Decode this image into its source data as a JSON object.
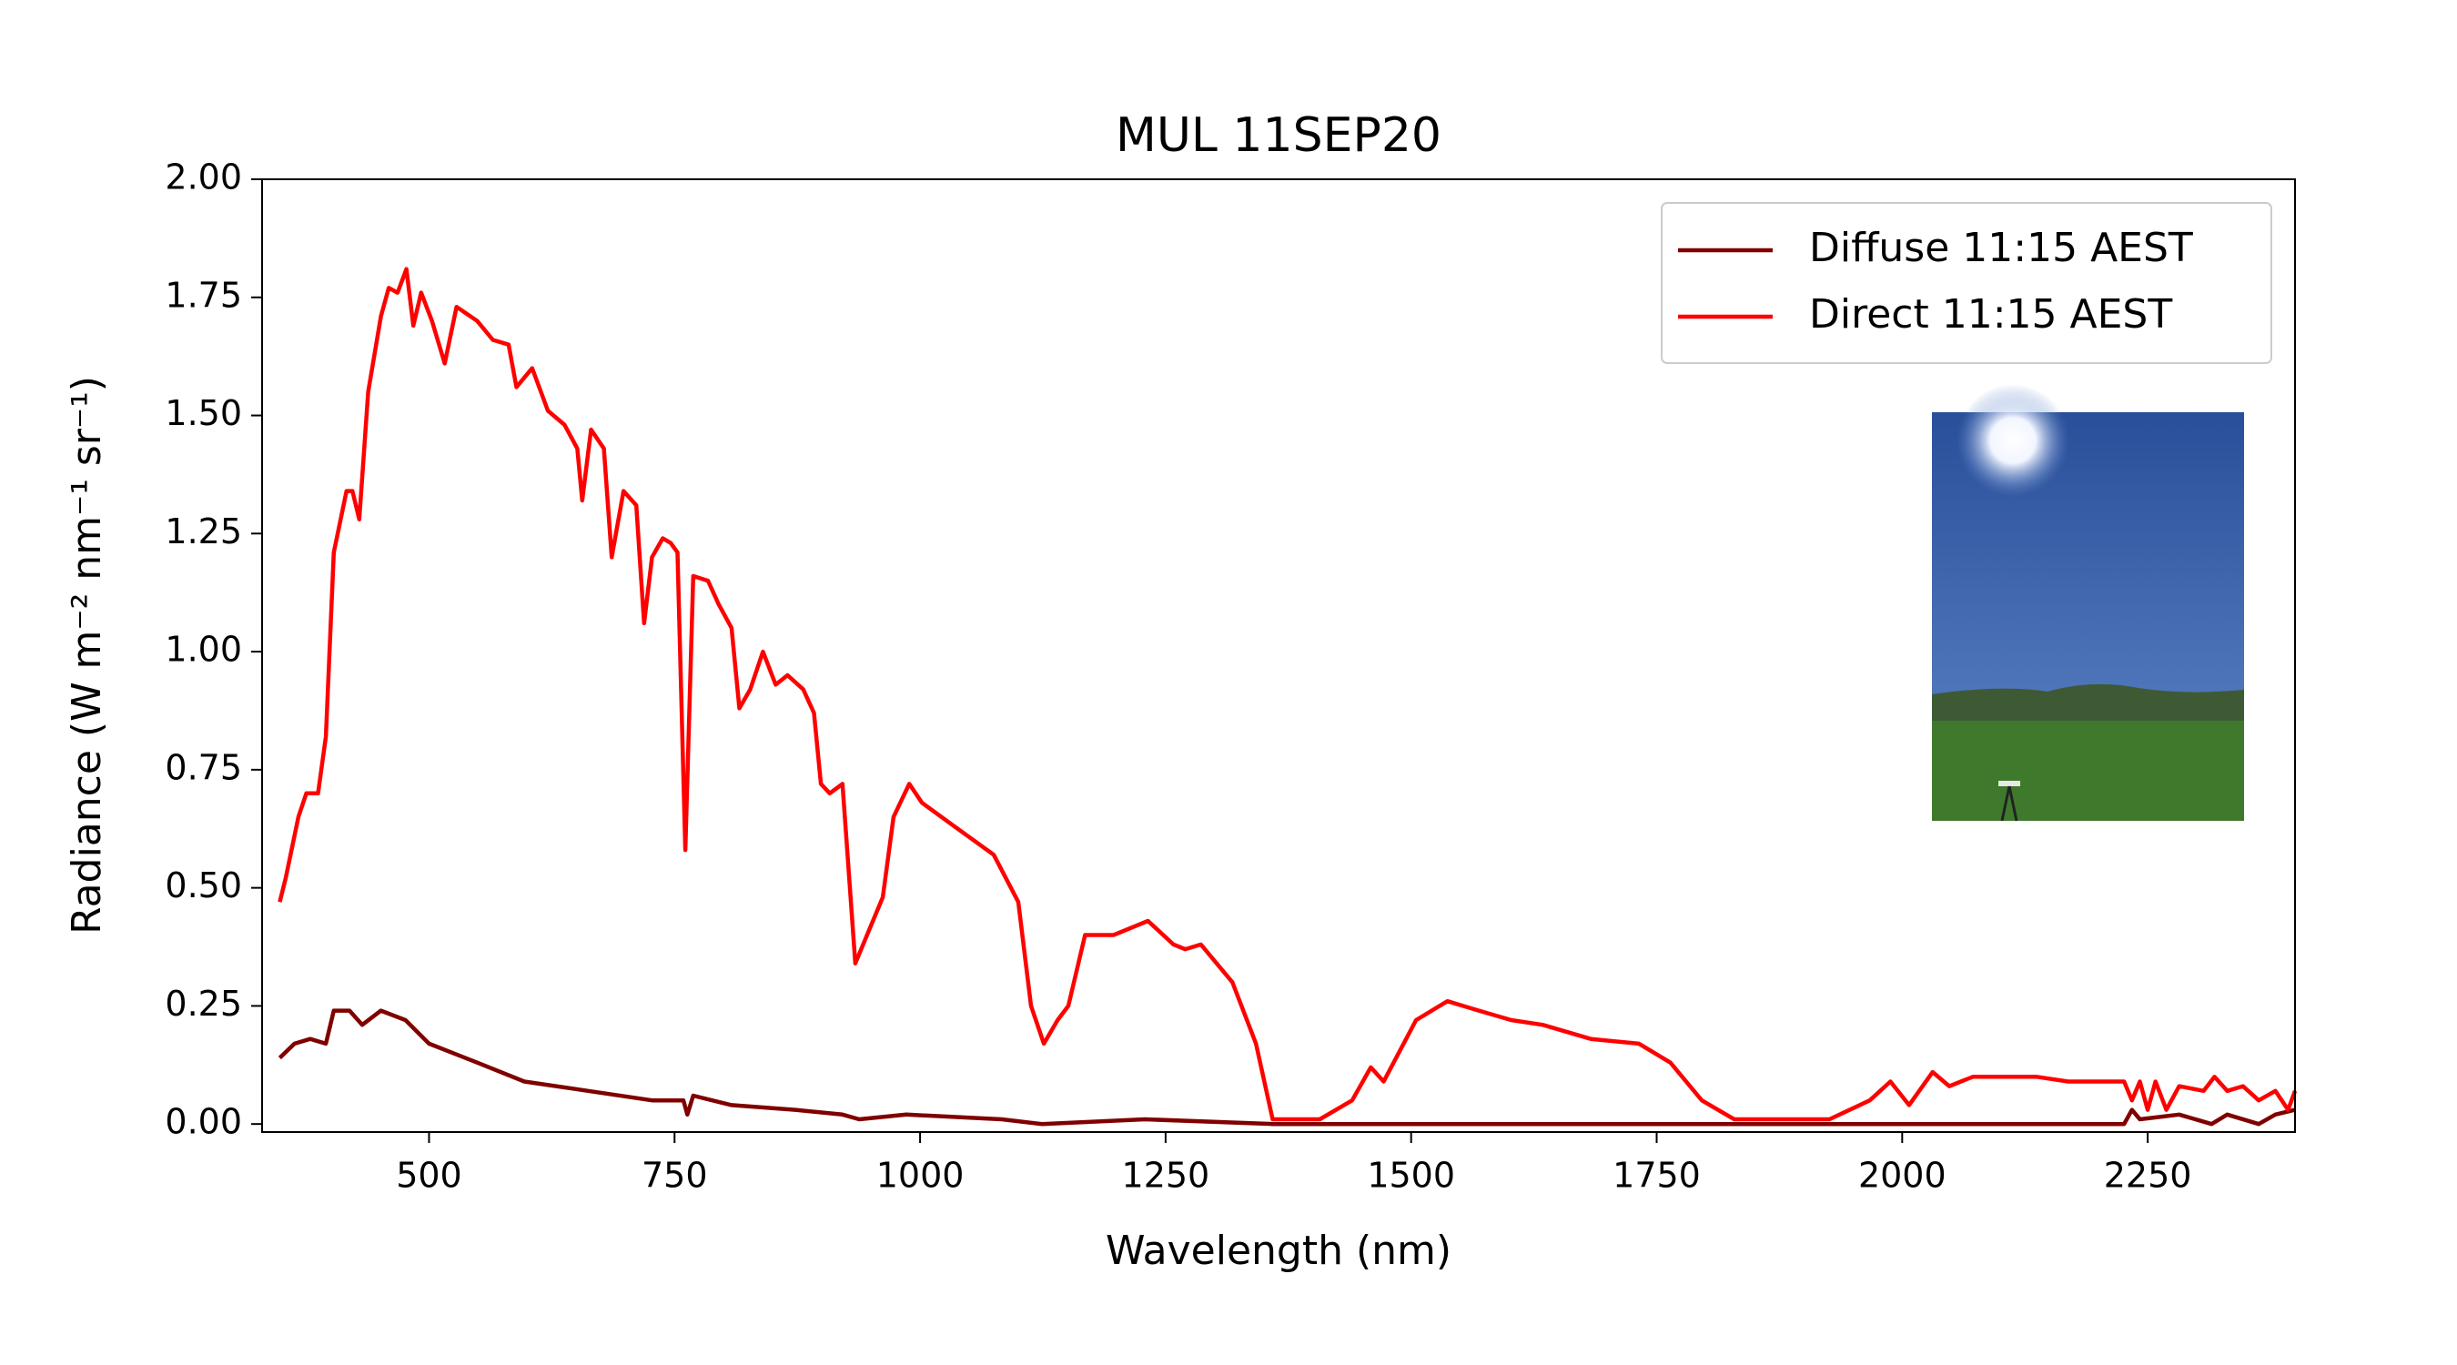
{
  "chart_data": {
    "type": "line",
    "title": "MUL 11SEP20",
    "x_label": "Wavelength (nm)",
    "y_label": "Radiance (W m⁻² nm⁻¹ sr⁻¹)",
    "xlim": [
      330,
      2400
    ],
    "ylim": [
      -0.017,
      2.0
    ],
    "xticks": [
      500,
      750,
      1000,
      1250,
      1500,
      1750,
      2000,
      2250
    ],
    "yticks": [
      {
        "value": 0,
        "label": "0.00"
      },
      {
        "value": 0.25,
        "label": "0.25"
      },
      {
        "value": 0.5,
        "label": "0.50"
      },
      {
        "value": 0.75,
        "label": "0.75"
      },
      {
        "value": 1,
        "label": "1.00"
      },
      {
        "value": 1.25,
        "label": "1.25"
      },
      {
        "value": 1.5,
        "label": "1.50"
      },
      {
        "value": 1.75,
        "label": "1.75"
      },
      {
        "value": 2,
        "label": "2.00"
      }
    ],
    "legend": "upper right",
    "grid": false,
    "series": [
      {
        "name": "Diffuse 11:15 AEST",
        "color": "#800000",
        "x": [
          348,
          363,
          379,
          395,
          403,
          419,
          432,
          451,
          476,
          500,
          549,
          597,
          662,
          727,
          759,
          763,
          769,
          808,
          873,
          921,
          938,
          986,
          1083,
          1124,
          1229,
          1359,
          2226,
          2234,
          2242,
          2282,
          2315,
          2331,
          2363,
          2380,
          2400
        ],
        "values": [
          0.14,
          0.17,
          0.18,
          0.17,
          0.24,
          0.24,
          0.21,
          0.24,
          0.22,
          0.17,
          0.13,
          0.09,
          0.07,
          0.05,
          0.05,
          0.02,
          0.06,
          0.04,
          0.03,
          0.02,
          0.01,
          0.02,
          0.01,
          0.0,
          0.01,
          0.0,
          0.0,
          0.03,
          0.01,
          0.02,
          0.0,
          0.02,
          0.0,
          0.02,
          0.03
        ]
      },
      {
        "name": "Direct 11:15 AEST",
        "color": "#ff0000",
        "x": [
          348,
          354,
          367,
          375,
          387,
          395,
          403,
          416,
          422,
          429,
          438,
          451,
          459,
          468,
          477,
          484,
          492,
          503,
          516,
          528,
          549,
          565,
          581,
          589,
          605,
          621,
          638,
          651,
          656,
          665,
          678,
          686,
          698,
          711,
          719,
          727,
          738,
          746,
          753,
          761,
          769,
          784,
          795,
          808,
          816,
          827,
          840,
          853,
          865,
          881,
          892,
          899,
          908,
          921,
          934,
          946,
          962,
          973,
          989,
          1002,
          1035,
          1075,
          1100,
          1113,
          1126,
          1140,
          1151,
          1168,
          1197,
          1232,
          1258,
          1270,
          1286,
          1318,
          1342,
          1359,
          1407,
          1440,
          1459,
          1472,
          1505,
          1537,
          1569,
          1602,
          1634,
          1683,
          1732,
          1764,
          1796,
          1829,
          1926,
          1967,
          1988,
          2007,
          2031,
          2048,
          2072,
          2137,
          2169,
          2226,
          2234,
          2242,
          2250,
          2258,
          2269,
          2282,
          2307,
          2318,
          2331,
          2347,
          2363,
          2380,
          2393,
          2400
        ],
        "values": [
          0.47,
          0.52,
          0.65,
          0.7,
          0.7,
          0.82,
          1.21,
          1.34,
          1.34,
          1.28,
          1.55,
          1.71,
          1.77,
          1.76,
          1.81,
          1.69,
          1.76,
          1.7,
          1.61,
          1.73,
          1.7,
          1.66,
          1.65,
          1.56,
          1.6,
          1.51,
          1.48,
          1.43,
          1.32,
          1.47,
          1.43,
          1.2,
          1.34,
          1.31,
          1.06,
          1.2,
          1.24,
          1.23,
          1.21,
          0.58,
          1.16,
          1.15,
          1.1,
          1.05,
          0.88,
          0.92,
          1.0,
          0.93,
          0.95,
          0.92,
          0.87,
          0.72,
          0.7,
          0.72,
          0.34,
          0.4,
          0.48,
          0.65,
          0.72,
          0.68,
          0.63,
          0.57,
          0.47,
          0.25,
          0.17,
          0.22,
          0.25,
          0.4,
          0.4,
          0.43,
          0.38,
          0.37,
          0.38,
          0.3,
          0.17,
          0.01,
          0.01,
          0.05,
          0.12,
          0.09,
          0.22,
          0.26,
          0.24,
          0.22,
          0.21,
          0.18,
          0.17,
          0.13,
          0.05,
          0.01,
          0.01,
          0.05,
          0.09,
          0.04,
          0.11,
          0.08,
          0.1,
          0.1,
          0.09,
          0.09,
          0.05,
          0.09,
          0.03,
          0.09,
          0.03,
          0.08,
          0.07,
          0.1,
          0.07,
          0.08,
          0.05,
          0.07,
          0.03,
          0.07
        ]
      }
    ]
  }
}
